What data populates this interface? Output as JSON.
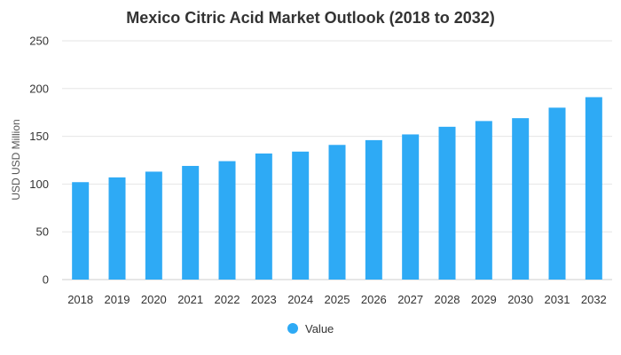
{
  "chart_data": {
    "type": "bar",
    "title": "Mexico Citric Acid Market Outlook (2018 to 2032)",
    "xlabel": "",
    "ylabel": "USD USD Million",
    "ylim": [
      0,
      250
    ],
    "yticks": [
      0,
      50,
      100,
      150,
      200,
      250
    ],
    "grid": true,
    "legend_position": "bottom",
    "bar_color": "#2eaaf5",
    "categories": [
      "2018",
      "2019",
      "2020",
      "2021",
      "2022",
      "2023",
      "2024",
      "2025",
      "2026",
      "2027",
      "2028",
      "2029",
      "2030",
      "2031",
      "2032"
    ],
    "series": [
      {
        "name": "Value",
        "values": [
          102,
          107,
          113,
          119,
          124,
          132,
          134,
          141,
          146,
          152,
          160,
          166,
          169,
          180,
          191
        ]
      }
    ]
  }
}
